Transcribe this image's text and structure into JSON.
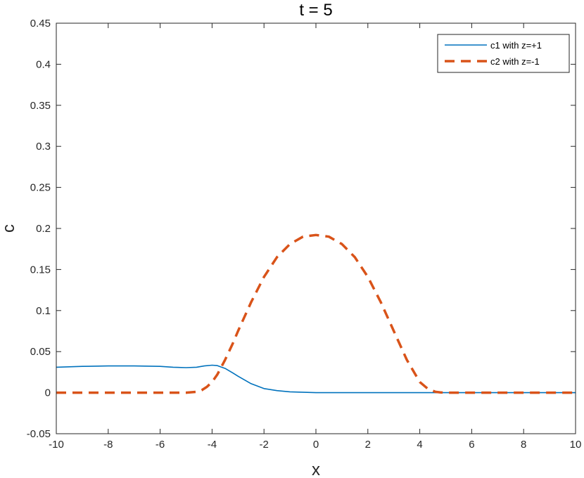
{
  "chart_data": {
    "type": "line",
    "title": "t = 5",
    "xlabel": "x",
    "ylabel": "c",
    "xlim": [
      -10,
      10
    ],
    "ylim": [
      -0.05,
      0.45
    ],
    "xticks": [
      -10,
      -8,
      -6,
      -4,
      -2,
      0,
      2,
      4,
      6,
      8,
      10
    ],
    "yticks": [
      -0.05,
      0,
      0.05,
      0.1,
      0.15,
      0.2,
      0.25,
      0.3,
      0.35,
      0.4,
      0.45
    ],
    "xtick_labels": [
      "-10",
      "-8",
      "-6",
      "-4",
      "-2",
      "0",
      "2",
      "4",
      "6",
      "8",
      "10"
    ],
    "ytick_labels": [
      "-0.05",
      "0",
      "0.05",
      "0.1",
      "0.15",
      "0.2",
      "0.25",
      "0.3",
      "0.35",
      "0.4",
      "0.45"
    ],
    "legend_position": "top-right",
    "grid": false,
    "series": [
      {
        "name": "c1 with z=+1",
        "color": "#0072BD",
        "style": "solid",
        "x": [
          -10,
          -9,
          -8,
          -7.5,
          -7,
          -6,
          -5.5,
          -5,
          -4.6,
          -4.3,
          -4.0,
          -3.8,
          -3.5,
          -3.2,
          -3.0,
          -2.5,
          -2.0,
          -1.5,
          -1.0,
          0,
          1,
          2,
          4,
          6,
          8,
          10
        ],
        "y": [
          0.031,
          0.032,
          0.0325,
          0.0325,
          0.0325,
          0.032,
          0.031,
          0.0305,
          0.031,
          0.0325,
          0.0335,
          0.033,
          0.0295,
          0.024,
          0.02,
          0.011,
          0.005,
          0.0025,
          0.001,
          0.0,
          0.0,
          0.0,
          0.0,
          0.0,
          0.0,
          0.0
        ]
      },
      {
        "name": "c2 with z=-1",
        "color": "#D95319",
        "style": "dashed",
        "x": [
          -10,
          -8,
          -6,
          -5,
          -4.6,
          -4.4,
          -4.2,
          -4.0,
          -3.8,
          -3.5,
          -3.2,
          -3.0,
          -2.5,
          -2.0,
          -1.5,
          -1.0,
          -0.5,
          0,
          0.5,
          1.0,
          1.5,
          2.0,
          2.5,
          3.0,
          3.5,
          4.0,
          4.3,
          4.6,
          4.8,
          5.0,
          5.5,
          6,
          8,
          10
        ],
        "y": [
          0.0,
          0.0,
          0.0,
          0.0,
          0.001,
          0.003,
          0.007,
          0.013,
          0.022,
          0.04,
          0.06,
          0.075,
          0.11,
          0.141,
          0.165,
          0.181,
          0.19,
          0.192,
          0.19,
          0.181,
          0.165,
          0.141,
          0.11,
          0.075,
          0.04,
          0.013,
          0.005,
          0.001,
          0.0003,
          0.0,
          0.0,
          0.0,
          0.0,
          0.0
        ]
      }
    ]
  }
}
